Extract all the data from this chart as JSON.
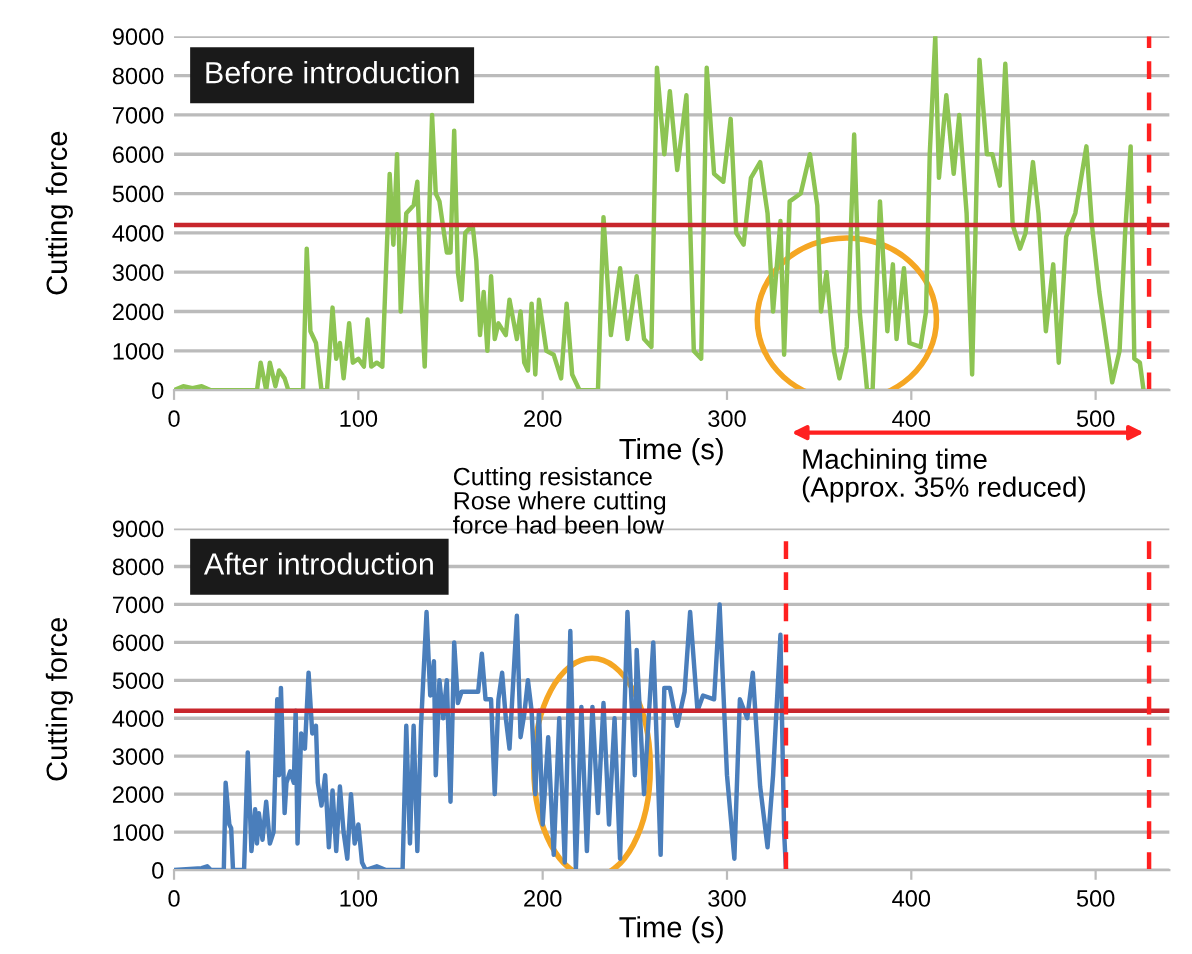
{
  "chart_data": [
    {
      "type": "line",
      "title": "Before introduction",
      "xlabel": "Time (s)",
      "ylabel": "Cutting force",
      "xlim": [
        0,
        540
      ],
      "xticks": [
        0,
        100,
        200,
        300,
        400,
        500
      ],
      "ylim": [
        0,
        9000
      ],
      "yticks": [
        0,
        1000,
        2000,
        3000,
        4000,
        5000,
        6000,
        7000,
        8000,
        9000
      ],
      "grid": "y",
      "legend": false,
      "marker": "none",
      "line_style": "solid",
      "series": [
        {
          "color": "#8dc453",
          "x": [
            0,
            5,
            10,
            15,
            20,
            45,
            47,
            50,
            52,
            55,
            57,
            60,
            62,
            70,
            72,
            74,
            77,
            80,
            83,
            86,
            88,
            90,
            92,
            95,
            97,
            100,
            103,
            105,
            107,
            110,
            113,
            117,
            119,
            121,
            123,
            126,
            130,
            132,
            134,
            136,
            140,
            142,
            144,
            148,
            150,
            152,
            154,
            156,
            158,
            162,
            164,
            166,
            168,
            170,
            172,
            174,
            176,
            180,
            182,
            184,
            186,
            188,
            190,
            192,
            194,
            196,
            198,
            202,
            206,
            210,
            213,
            216,
            220,
            230,
            233,
            237,
            242,
            246,
            251,
            255,
            259,
            262,
            266,
            269,
            273,
            278,
            282,
            286,
            289,
            293,
            298,
            302,
            305,
            309,
            313,
            318,
            322,
            325,
            329,
            331,
            334,
            340,
            345,
            349,
            351,
            354,
            358,
            361,
            365,
            369,
            372,
            376,
            379,
            383,
            387,
            390,
            392,
            396,
            399,
            405,
            408,
            410,
            413,
            415,
            419,
            423,
            426,
            430,
            433,
            437,
            441,
            444,
            448,
            451,
            455,
            459,
            462,
            466,
            469,
            473,
            477,
            480,
            484,
            489,
            495,
            498,
            502,
            505,
            509,
            513,
            516,
            519,
            521,
            524,
            526
          ],
          "values": [
            0,
            100,
            50,
            100,
            0,
            0,
            700,
            0,
            700,
            100,
            500,
            300,
            0,
            0,
            3600,
            1500,
            1200,
            0,
            0,
            2100,
            800,
            1200,
            300,
            1700,
            700,
            800,
            600,
            1800,
            600,
            700,
            600,
            5500,
            3700,
            6000,
            2000,
            4500,
            4700,
            5300,
            2500,
            600,
            7000,
            5000,
            4800,
            3500,
            3500,
            6600,
            3000,
            2300,
            4000,
            4200,
            3300,
            1400,
            2500,
            1000,
            2900,
            1300,
            1700,
            1400,
            2300,
            1800,
            1300,
            2000,
            700,
            500,
            2200,
            400,
            2300,
            1000,
            900,
            300,
            2200,
            400,
            0,
            0,
            4400,
            1400,
            3100,
            1300,
            2900,
            1300,
            1100,
            8200,
            6000,
            7600,
            5600,
            7500,
            1000,
            800,
            8200,
            5500,
            5300,
            6900,
            4000,
            3700,
            5400,
            5800,
            4500,
            2000,
            4300,
            900,
            4800,
            5000,
            6000,
            4700,
            2000,
            3000,
            1000,
            300,
            1100,
            6500,
            2000,
            0,
            0,
            4800,
            1500,
            3200,
            1300,
            3100,
            1200,
            1100,
            2000,
            6000,
            9000,
            5400,
            7500,
            5500,
            7000,
            4500,
            400,
            8400,
            6000,
            6000,
            5200,
            8300,
            4200,
            3600,
            4000,
            5800,
            4500,
            1500,
            3200,
            700,
            3900,
            4500,
            6200,
            4200,
            2500,
            1500,
            200,
            1000,
            4000,
            6200,
            800,
            700,
            0
          ]
        }
      ],
      "ref_lines": [
        {
          "axis": "y",
          "value": 4200,
          "color": "#c8262c",
          "line_style": "solid"
        },
        {
          "axis": "x",
          "value": 529,
          "color": "#ff2020",
          "line_style": "dashed"
        }
      ],
      "annotations": [
        "Machining time\n(Approx. 35% reduced)"
      ]
    },
    {
      "type": "line",
      "title": "After introduction",
      "xlabel": "Time (s)",
      "ylabel": "Cutting force",
      "xlim": [
        0,
        540
      ],
      "xticks": [
        0,
        100,
        200,
        300,
        400,
        500
      ],
      "ylim": [
        0,
        9000
      ],
      "yticks": [
        0,
        1000,
        2000,
        3000,
        4000,
        5000,
        6000,
        7000,
        8000,
        9000
      ],
      "grid": "y",
      "legend": false,
      "marker": "none",
      "line_style": "solid",
      "series": [
        {
          "color": "#4a7ebb",
          "x": [
            0,
            15,
            18,
            20,
            27,
            28,
            30,
            31,
            32,
            38,
            40,
            42,
            44,
            45,
            46,
            48,
            50,
            52,
            54,
            56,
            57,
            58,
            60,
            61,
            63,
            65,
            66,
            67,
            69,
            71,
            73,
            75,
            77,
            78,
            80,
            82,
            84,
            86,
            88,
            90,
            92,
            94,
            96,
            98,
            100,
            102,
            104,
            110,
            115,
            124,
            126,
            128,
            130,
            132,
            134,
            137,
            139,
            141,
            142,
            144,
            146,
            148,
            150,
            152,
            154,
            156,
            165,
            167,
            169,
            172,
            174,
            176,
            178,
            180,
            182,
            186,
            188,
            190,
            192,
            194,
            196,
            198,
            200,
            203,
            206,
            209,
            212,
            215,
            218,
            221,
            224,
            227,
            230,
            233,
            236,
            239,
            242,
            246,
            250,
            251,
            255,
            260,
            264,
            266,
            269,
            273,
            277,
            280,
            284,
            287,
            293,
            296,
            300,
            304,
            307,
            311,
            314,
            318,
            322,
            325,
            329,
            331,
            332
          ],
          "values": [
            0,
            50,
            100,
            0,
            0,
            2300,
            1200,
            1100,
            0,
            0,
            3100,
            500,
            1600,
            700,
            1500,
            800,
            1800,
            700,
            1000,
            4500,
            2500,
            4800,
            1500,
            2300,
            2600,
            2300,
            4200,
            700,
            3600,
            3200,
            5200,
            3600,
            3800,
            2300,
            1700,
            2500,
            600,
            2100,
            500,
            2200,
            1000,
            300,
            2000,
            700,
            1200,
            200,
            0,
            100,
            0,
            0,
            3800,
            700,
            3800,
            500,
            3800,
            6800,
            4600,
            5500,
            2500,
            5000,
            4000,
            5000,
            1800,
            6000,
            4400,
            4700,
            4700,
            5700,
            4500,
            4500,
            2000,
            4500,
            5200,
            4000,
            3200,
            6700,
            3500,
            4100,
            5000,
            4200,
            2000,
            4200,
            1200,
            3500,
            400,
            4000,
            200,
            6300,
            0,
            4300,
            500,
            4300,
            1500,
            4400,
            1200,
            4000,
            300,
            6800,
            2500,
            5800,
            2000,
            6000,
            400,
            4800,
            4800,
            3800,
            4700,
            6800,
            4200,
            4600,
            4500,
            7000,
            2500,
            300,
            4500,
            4000,
            5200,
            2200,
            600,
            2500,
            6200,
            1000,
            0
          ]
        }
      ],
      "ref_lines": [
        {
          "axis": "y",
          "value": 4200,
          "color": "#c8262c",
          "line_style": "solid"
        },
        {
          "axis": "x",
          "value": 332,
          "color": "#ff2020",
          "line_style": "dashed"
        },
        {
          "axis": "x",
          "value": 529,
          "color": "#ff2020",
          "line_style": "dashed"
        }
      ],
      "annotations": [
        "Cutting resistance\nRose where cutting\nforce had been low"
      ]
    }
  ]
}
